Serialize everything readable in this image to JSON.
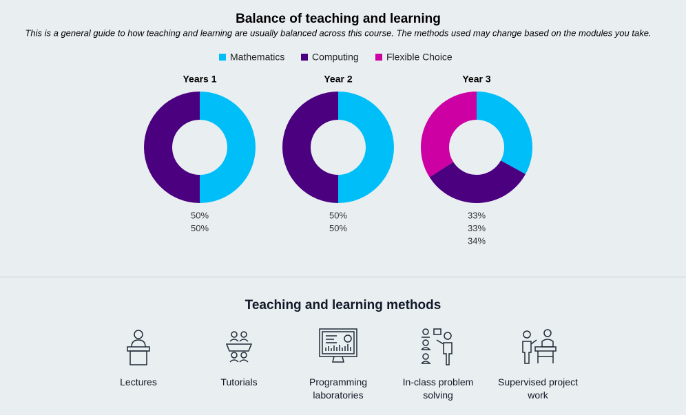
{
  "header": {
    "title": "Balance of teaching and learning",
    "subtitle": "This is a general guide to how teaching and learning are usually balanced across this course. The methods used may change based on the modules you take."
  },
  "legend": [
    {
      "name": "Mathematics",
      "color": "#00bff8"
    },
    {
      "name": "Computing",
      "color": "#4b0080"
    },
    {
      "name": "Flexible Choice",
      "color": "#cc00a3"
    }
  ],
  "chart_data": [
    {
      "type": "donut",
      "title": "Years 1",
      "categories": [
        "Mathematics",
        "Computing"
      ],
      "values": [
        50,
        50
      ],
      "value_labels": [
        "50%",
        "50%"
      ],
      "colors": [
        "#00bff8",
        "#4b0080"
      ]
    },
    {
      "type": "donut",
      "title": "Year 2",
      "categories": [
        "Mathematics",
        "Computing"
      ],
      "values": [
        50,
        50
      ],
      "value_labels": [
        "50%",
        "50%"
      ],
      "colors": [
        "#00bff8",
        "#4b0080"
      ]
    },
    {
      "type": "donut",
      "title": "Year 3",
      "categories": [
        "Mathematics",
        "Computing",
        "Flexible Choice"
      ],
      "values": [
        33,
        33,
        34
      ],
      "value_labels": [
        "33%",
        "33%",
        "34%"
      ],
      "colors": [
        "#00bff8",
        "#4b0080",
        "#cc00a3"
      ]
    }
  ],
  "methods": {
    "title": "Teaching and learning methods",
    "items": [
      "Lectures",
      "Tutorials",
      "Programming laboratories",
      "In-class problem solving",
      "Supervised project work"
    ]
  }
}
